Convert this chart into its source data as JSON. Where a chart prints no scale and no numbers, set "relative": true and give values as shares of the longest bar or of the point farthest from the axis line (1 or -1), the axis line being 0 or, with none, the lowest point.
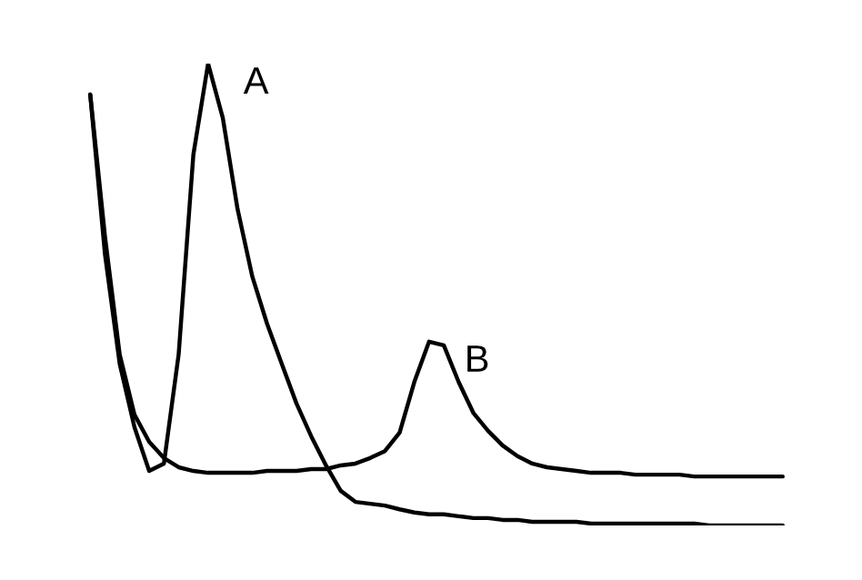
{
  "chart_data": {
    "type": "line",
    "relative": true,
    "legend": false,
    "line_style": "solid",
    "marker": "none",
    "categories": [
      null,
      null,
      null,
      null,
      null,
      null,
      null,
      null,
      null,
      null,
      null,
      null,
      null,
      null,
      null,
      null,
      null,
      null,
      null,
      null,
      null,
      null,
      null,
      null,
      null,
      null,
      null,
      null,
      null,
      null,
      null,
      null,
      null,
      null,
      null,
      null,
      null,
      null,
      null,
      null,
      null,
      null,
      null,
      null,
      null,
      null,
      null,
      null
    ],
    "series": [
      {
        "name": "A",
        "color": "#000000",
        "values": [
          0.933,
          0.587,
          0.35,
          0.213,
          0.118,
          0.134,
          0.37,
          0.803,
          1,
          0.882,
          0.685,
          0.539,
          0.437,
          0.35,
          0.264,
          0.193,
          0.13,
          0.075,
          0.051,
          0.047,
          0.043,
          0.035,
          0.028,
          0.024,
          0.024,
          0.02,
          0.016,
          0.016,
          0.012,
          0.012,
          0.008,
          0.008,
          0.008,
          0.008,
          0.004,
          0.004,
          0.004,
          0.004,
          0.004,
          0.004,
          0.004,
          0.004,
          0,
          0,
          0,
          0,
          0,
          0
        ]
      },
      {
        "name": "B",
        "color": "#000000",
        "values": [
          0.933,
          0.626,
          0.37,
          0.24,
          0.181,
          0.146,
          0.126,
          0.118,
          0.114,
          0.114,
          0.114,
          0.114,
          0.118,
          0.118,
          0.118,
          0.122,
          0.122,
          0.13,
          0.134,
          0.146,
          0.161,
          0.201,
          0.311,
          0.398,
          0.39,
          0.311,
          0.244,
          0.205,
          0.173,
          0.15,
          0.134,
          0.126,
          0.122,
          0.118,
          0.114,
          0.114,
          0.114,
          0.11,
          0.11,
          0.11,
          0.11,
          0.106,
          0.106,
          0.106,
          0.106,
          0.106,
          0.106,
          0.106
        ]
      }
    ]
  }
}
